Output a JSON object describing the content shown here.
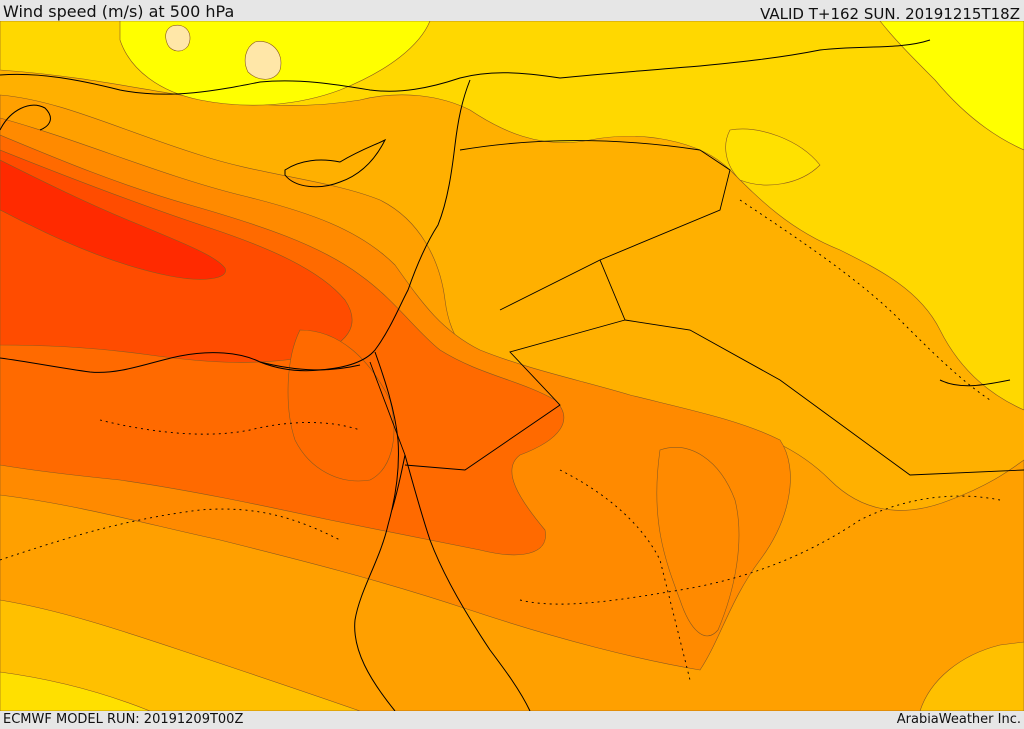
{
  "header": {
    "title": "Wind speed (m/s) at 500 hPa",
    "valid_time": "VALID T+162 SUN. 20191215T18Z"
  },
  "footer": {
    "model_run": "ECMWF MODEL RUN: 20191209T00Z",
    "credit": "ArabiaWeather Inc."
  },
  "map": {
    "variable": "wind speed",
    "level_hpa": 500,
    "units": "m/s",
    "palette": [
      "#fff27a",
      "#ffff00",
      "#ffe100",
      "#ffc300",
      "#ffa600",
      "#ff8c00",
      "#ff6a00",
      "#ff5400",
      "#ff3c00",
      "#ff2000"
    ]
  }
}
